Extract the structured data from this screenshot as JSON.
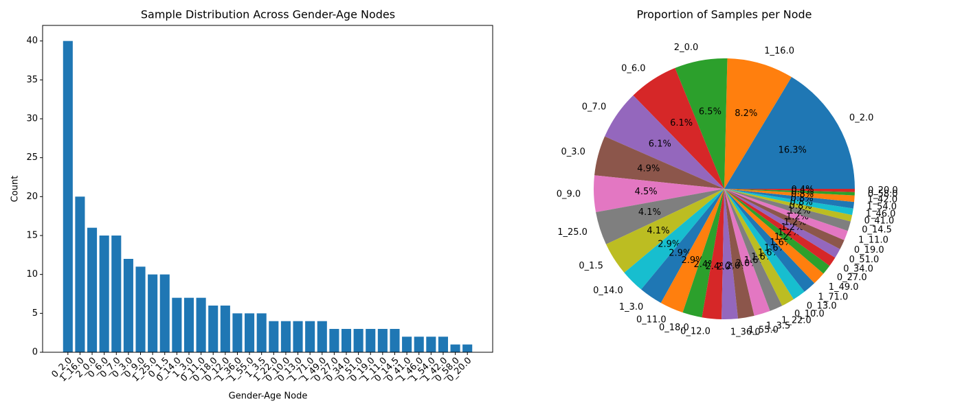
{
  "chart_data": [
    {
      "type": "bar",
      "title": "Sample Distribution Across Gender-Age Nodes",
      "xlabel": "Gender-Age Node",
      "ylabel": "Count",
      "categories": [
        "0_2.0",
        "1_16.0",
        "2_0.0",
        "0_6.0",
        "0_7.0",
        "0_3.0",
        "0_9.0",
        "1_25.0",
        "0_1.5",
        "0_14.0",
        "1_3.0",
        "0_11.0",
        "0_18.0",
        "0_12.0",
        "1_36.0",
        "1_55.0",
        "1_3.5",
        "1_22.0",
        "0_10.0",
        "0_13.0",
        "1_71.0",
        "1_49.0",
        "0_27.0",
        "0_34.0",
        "0_51.0",
        "0_19.0",
        "1_11.0",
        "0_14.5",
        "0_41.0",
        "1_46.0",
        "1_54.0",
        "1_42.0",
        "0_58.0",
        "0_20.0"
      ],
      "values": [
        40,
        20,
        16,
        15,
        15,
        12,
        11,
        10,
        10,
        7,
        7,
        7,
        6,
        6,
        5,
        5,
        5,
        4,
        4,
        4,
        4,
        4,
        3,
        3,
        3,
        3,
        3,
        3,
        2,
        2,
        2,
        2,
        1,
        1
      ],
      "color": "#1f77b4",
      "ylim": [
        0,
        42
      ],
      "yticks": [
        0,
        5,
        10,
        15,
        20,
        25,
        30,
        35,
        40
      ],
      "grid": false
    },
    {
      "type": "pie",
      "title": "Proportion of Samples per Node",
      "categories": [
        "0_2.0",
        "1_16.0",
        "2_0.0",
        "0_6.0",
        "0_7.0",
        "0_3.0",
        "0_9.0",
        "1_25.0",
        "0_1.5",
        "0_14.0",
        "1_3.0",
        "0_11.0",
        "0_18.0",
        "0_12.0",
        "1_36.0",
        "1_55.0",
        "1_3.5",
        "1_22.0",
        "0_10.0",
        "0_13.0",
        "1_71.0",
        "1_49.0",
        "0_27.0",
        "0_34.0",
        "0_51.0",
        "0_19.0",
        "1_11.0",
        "0_14.5",
        "0_41.0",
        "1_46.0",
        "1_54.0",
        "1_42.0",
        "0_58.0",
        "0_20.0"
      ],
      "values": [
        16.3,
        8.2,
        6.5,
        6.1,
        6.1,
        4.9,
        4.5,
        4.1,
        4.1,
        2.9,
        2.9,
        2.9,
        2.4,
        2.4,
        2.0,
        2.0,
        2.0,
        1.6,
        1.6,
        1.6,
        1.6,
        1.6,
        1.2,
        1.2,
        1.2,
        1.2,
        1.2,
        1.2,
        0.8,
        0.8,
        0.8,
        0.8,
        0.4,
        0.4
      ],
      "value_labels": [
        "16.3%",
        "8.2%",
        "6.5%",
        "6.1%",
        "6.1%",
        "4.9%",
        "4.5%",
        "4.1%",
        "4.1%",
        "2.9%",
        "2.9%",
        "2.9%",
        "2.4%",
        "2.4%",
        "2.0%",
        "2.0%",
        "2.0%",
        "1.6%",
        "1.6%",
        "1.6%",
        "1.6%",
        "1.6%",
        "1.2%",
        "1.2%",
        "1.2%",
        "1.2%",
        "1.2%",
        "1.2%",
        "0.8%",
        "0.8%",
        "0.8%",
        "0.8%",
        "0.4%",
        "0.4%"
      ],
      "colors": [
        "#1f77b4",
        "#ff7f0e",
        "#2ca02c",
        "#d62728",
        "#9467bd",
        "#8c564b",
        "#e377c2",
        "#7f7f7f",
        "#bcbd22",
        "#17becf"
      ]
    }
  ]
}
